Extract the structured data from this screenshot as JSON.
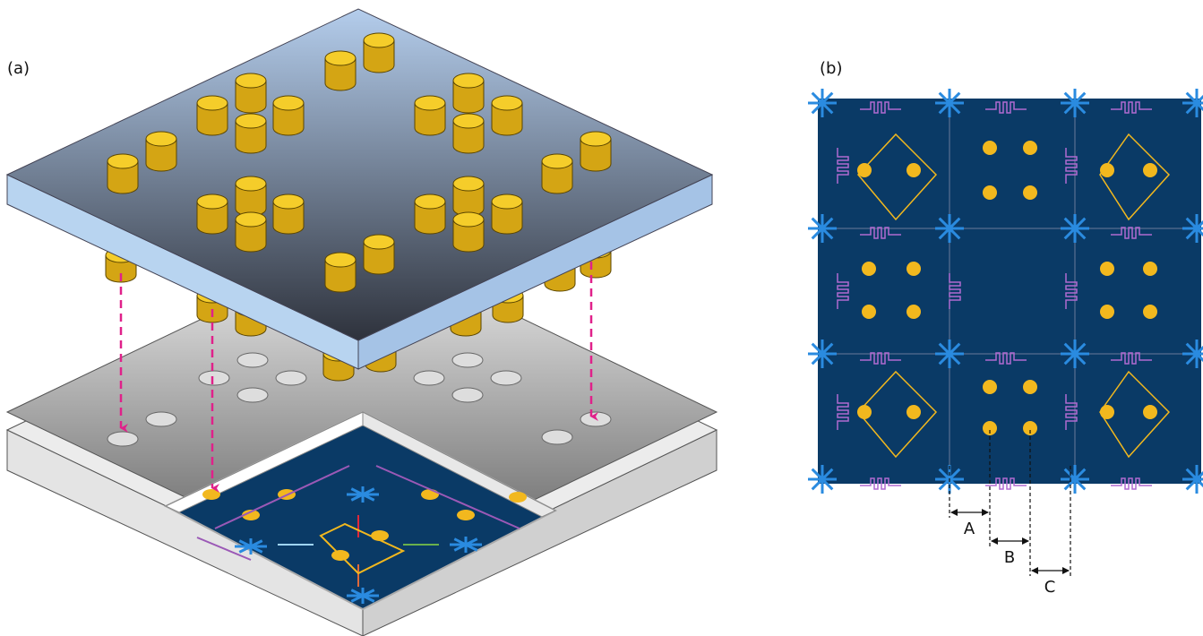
{
  "panels": [
    {
      "label": "(a)"
    },
    {
      "label": "(b)"
    }
  ],
  "dimensions": [
    {
      "label": "A"
    },
    {
      "label": "B"
    },
    {
      "label": "C"
    }
  ]
}
